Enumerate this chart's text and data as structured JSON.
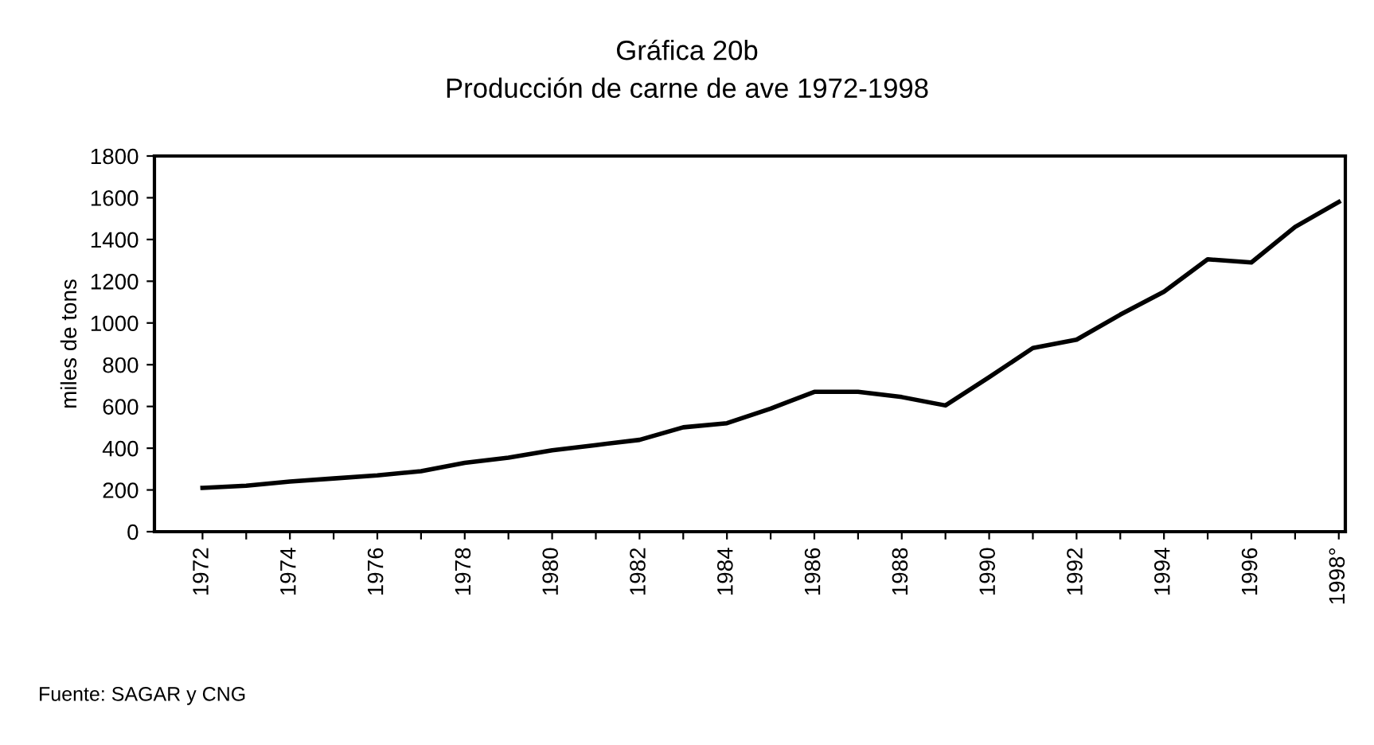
{
  "chart_data": {
    "type": "line",
    "title": "Gráfica 20b\nProducción de carne de ave 1972-1998",
    "ylabel": "miles de tons",
    "categories": [
      "1972",
      null,
      "1974",
      null,
      "1976",
      null,
      "1978",
      null,
      "1980",
      null,
      "1982",
      null,
      "1984",
      null,
      "1986",
      null,
      "1988",
      null,
      "1990",
      null,
      "1992",
      null,
      "1994",
      null,
      "1996",
      null,
      "1998°"
    ],
    "series": [
      {
        "color": "#000000",
        "values": [
          210,
          220,
          240,
          255,
          270,
          290,
          330,
          355,
          390,
          415,
          440,
          500,
          520,
          590,
          670,
          670,
          645,
          605,
          740,
          880,
          920,
          1040,
          1150,
          1305,
          1290,
          1460,
          1580
        ]
      }
    ],
    "ylim": [
      0,
      1800
    ],
    "yticks": [
      0,
      200,
      400,
      600,
      800,
      1000,
      1200,
      1400,
      1600,
      1800
    ],
    "grid": false,
    "marker": "none",
    "line_style": "solid",
    "annotations": [
      "Fuente: SAGAR y CNG"
    ]
  }
}
